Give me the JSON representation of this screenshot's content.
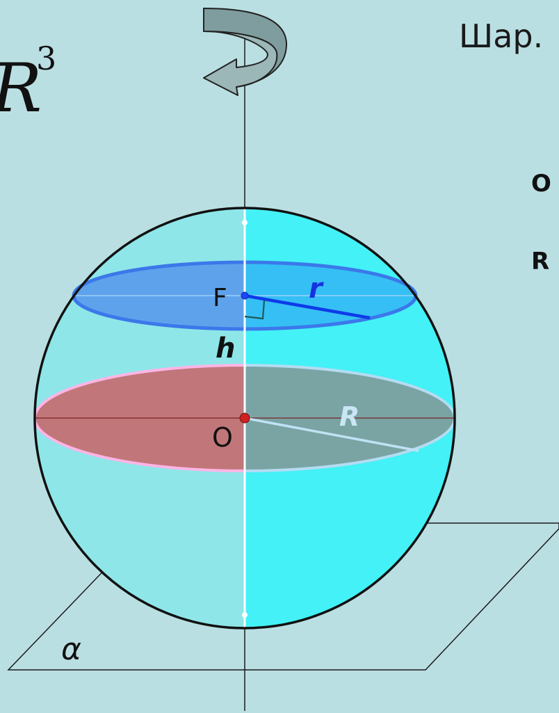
{
  "title": "Шар.",
  "formula_fragment": {
    "var": "R",
    "exp": "3"
  },
  "side_labels": [
    "O",
    "R"
  ],
  "points": {
    "top_center": "F",
    "center": "O"
  },
  "segments": {
    "small_radius": "r",
    "height": "h",
    "big_radius": "R"
  },
  "plane_label": "α",
  "colors": {
    "background": "#badfe3",
    "sphere_left": "#8ee6e8",
    "sphere_right": "#43f1f6",
    "small_section_left": "#5fa2ec",
    "small_section_right": "#36bff5",
    "small_section_edge": "#3b78ea",
    "big_section_left": "#c17779",
    "big_section_right": "#7aa4a4",
    "big_section_edge_left": "#ffb5e6",
    "big_section_edge_right": "#b4dcf2",
    "arrow": "#9cb7b8"
  }
}
